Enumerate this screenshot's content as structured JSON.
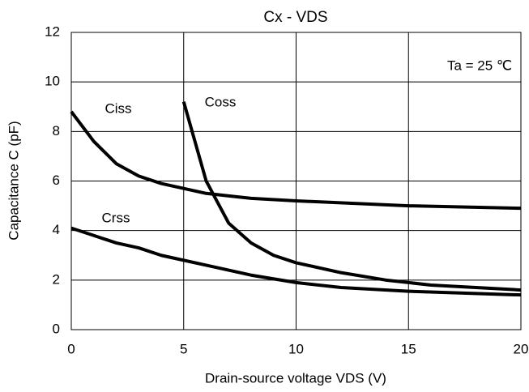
{
  "chart_data": {
    "type": "line",
    "title": "Cx - VDS",
    "x_label": "Drain-source voltage VDS (V)",
    "y_label": "Capacitance  C (pF)",
    "annotations": [
      "Ta = 25 ℃"
    ],
    "xlim": [
      0,
      20
    ],
    "xticks": [
      0,
      5,
      10,
      15,
      20
    ],
    "ylim": [
      0,
      12
    ],
    "yticks": [
      0,
      2,
      4,
      6,
      8,
      10,
      12
    ],
    "grid": true,
    "series": [
      {
        "name": "Ciss",
        "color": "#000000",
        "x": [
          0,
          1,
          2,
          3,
          4,
          5,
          6,
          7,
          8,
          10,
          15,
          20
        ],
        "values": [
          8.8,
          7.6,
          6.7,
          6.2,
          5.9,
          5.7,
          5.5,
          5.4,
          5.3,
          5.2,
          5.0,
          4.9
        ]
      },
      {
        "name": "Coss",
        "color": "#000000",
        "x": [
          5,
          6,
          7,
          8,
          9,
          10,
          12,
          14,
          16,
          20
        ],
        "values": [
          9.2,
          6.0,
          4.3,
          3.5,
          3.0,
          2.7,
          2.3,
          2.0,
          1.8,
          1.6
        ]
      },
      {
        "name": "Crss",
        "color": "#000000",
        "x": [
          0,
          1,
          2,
          3,
          4,
          5,
          6,
          7,
          8,
          10,
          12,
          15,
          20
        ],
        "values": [
          4.1,
          3.8,
          3.5,
          3.3,
          3.0,
          2.8,
          2.6,
          2.4,
          2.2,
          1.9,
          1.7,
          1.55,
          1.4
        ]
      }
    ]
  }
}
